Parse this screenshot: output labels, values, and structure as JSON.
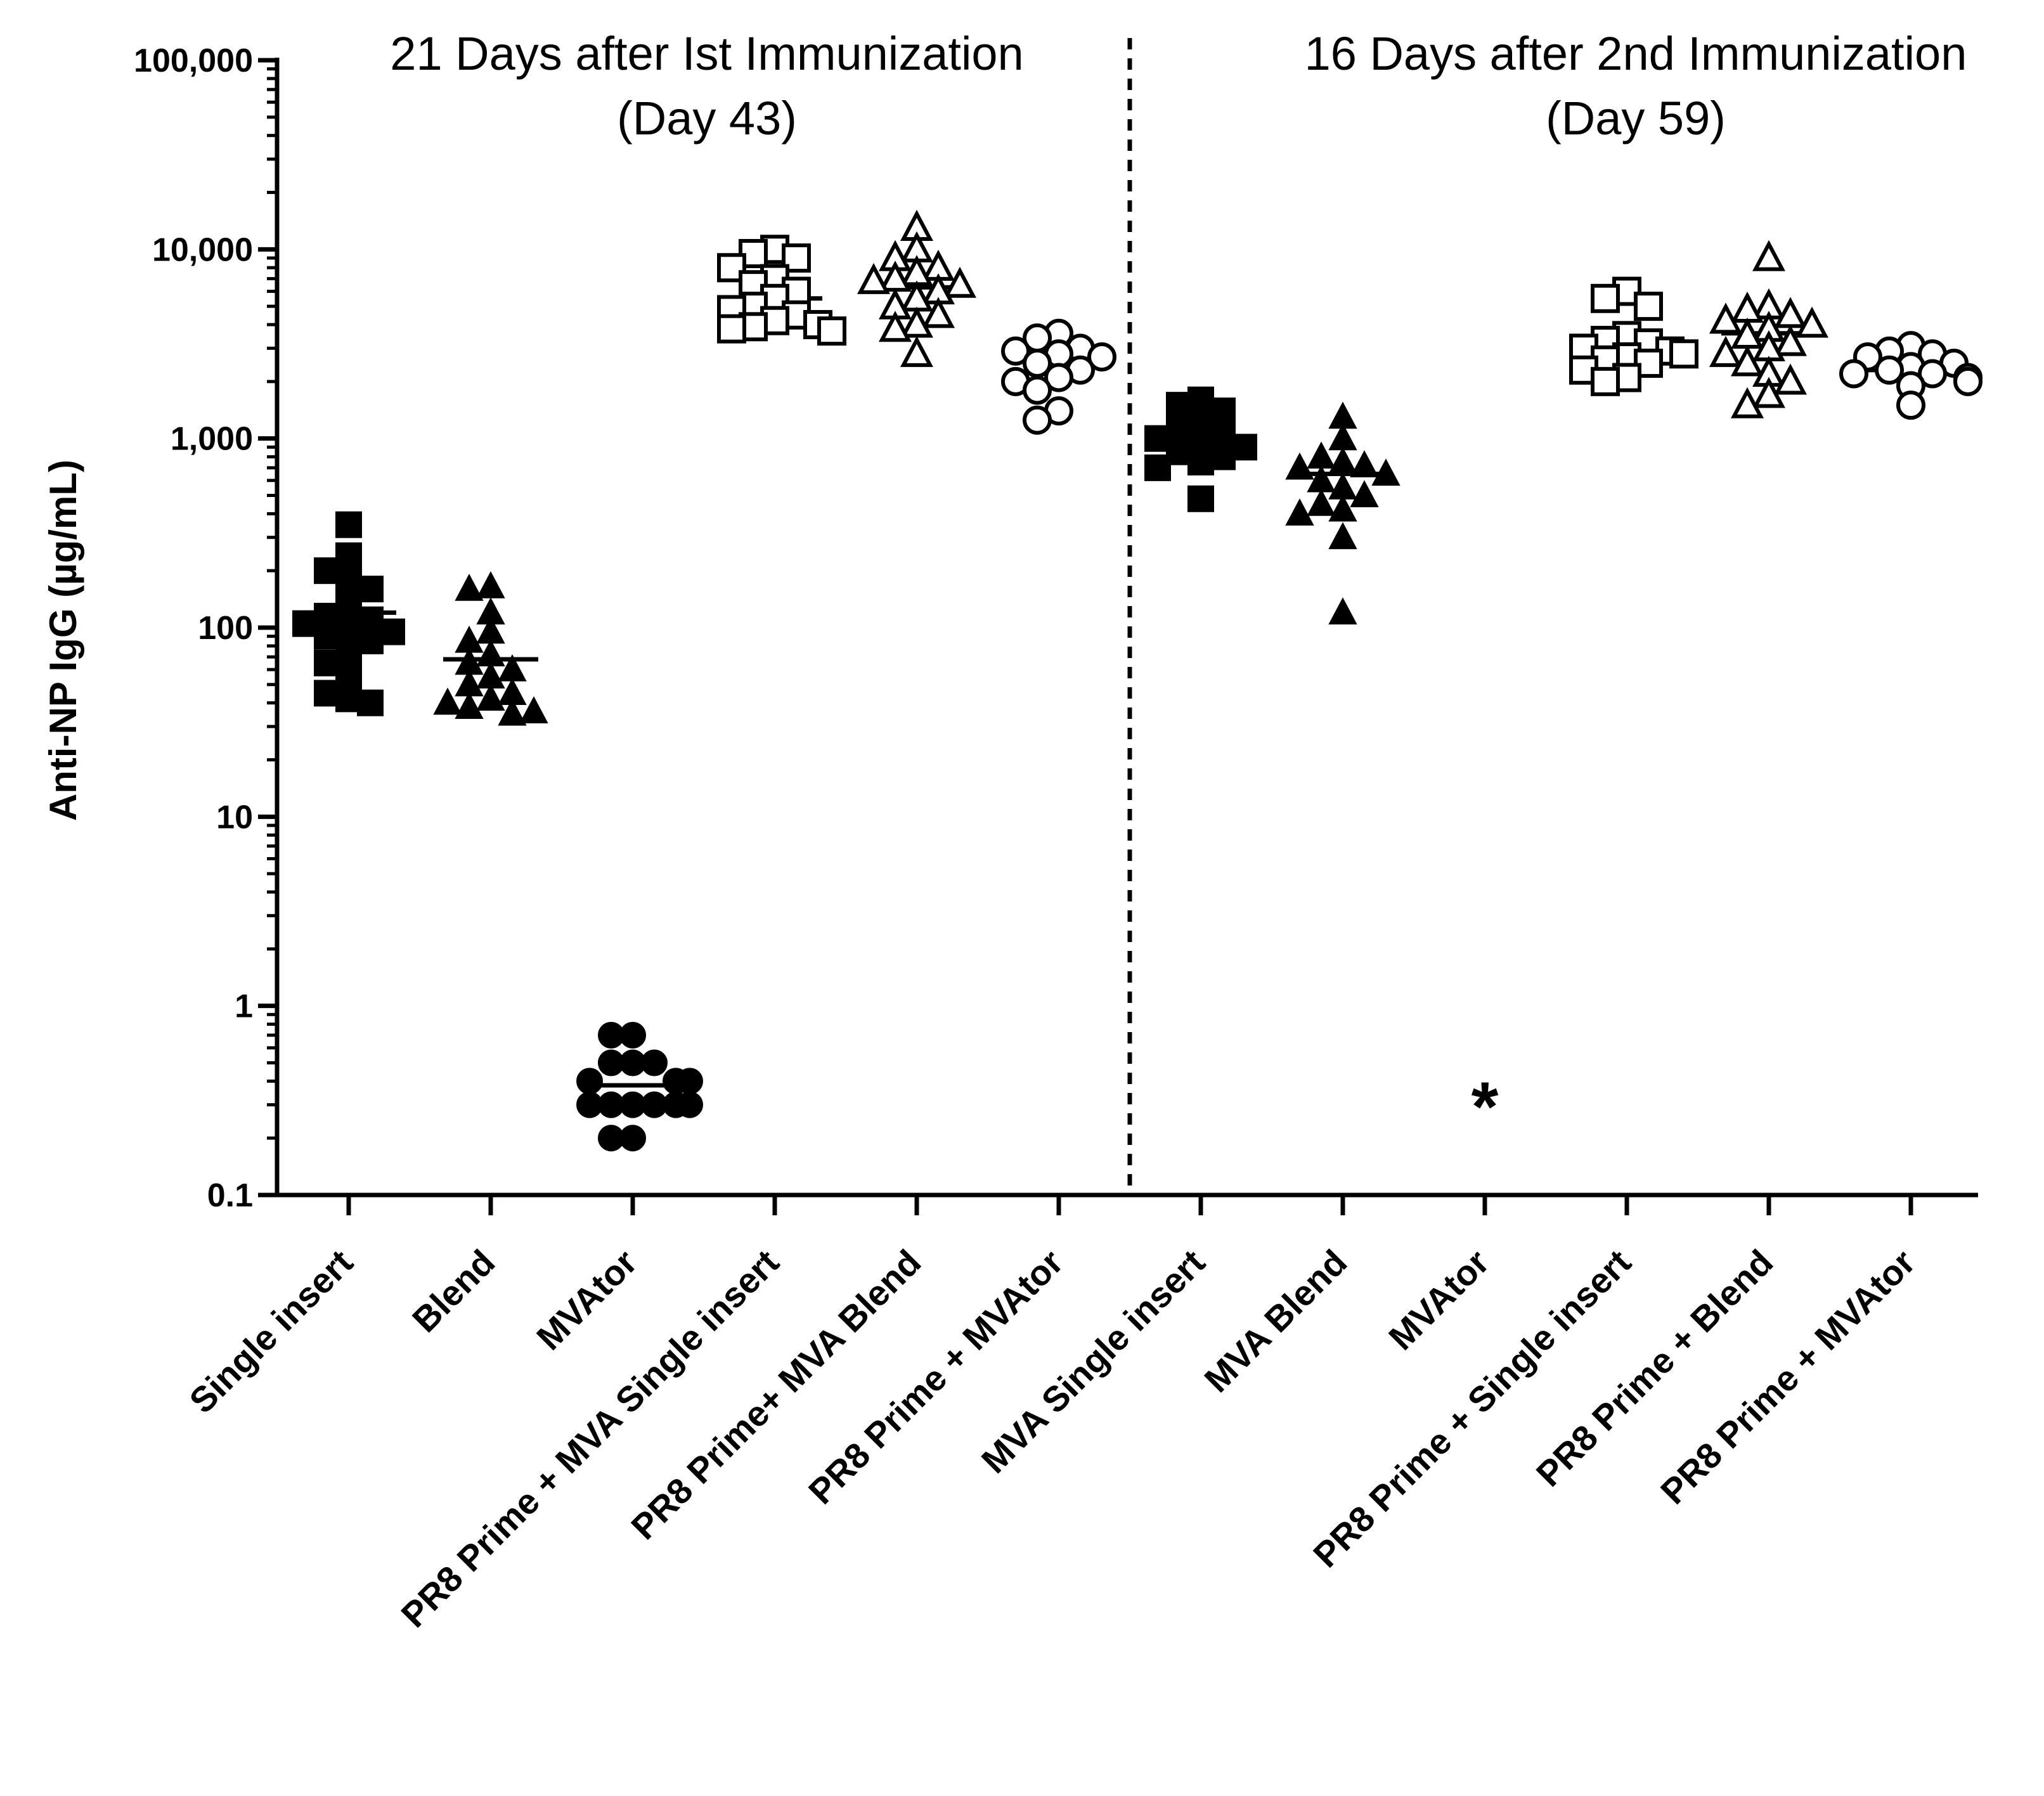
{
  "chart_data": {
    "type": "scatter",
    "yscale": "log",
    "ylabel": "Anti-NP IgG (µg/mL)",
    "ylim": [
      0.1,
      100000
    ],
    "y_ticks": [
      0.1,
      1,
      10,
      100,
      1000,
      10000,
      100000
    ],
    "y_tick_labels": [
      "0.1",
      "1",
      "10",
      "100",
      "1,000",
      "10,000",
      "100,000"
    ],
    "panels": [
      {
        "title_line1": "21 Days after Ist Immunization",
        "title_line2": "(Day 43)"
      },
      {
        "title_line1": "16 Days after 2nd Immunization",
        "title_line2": "(Day 59)"
      }
    ],
    "annotation": "*",
    "annotation_category_index": 8,
    "annotation_y": 0.37,
    "series": [
      {
        "name": "Single insert",
        "panel": 0,
        "marker": "square",
        "filled": true,
        "mean": 120,
        "values": [
          350,
          240,
          200,
          175,
          160,
          130,
          115,
          110,
          105,
          100,
          95,
          90,
          85,
          75,
          65,
          55,
          45,
          42,
          40
        ]
      },
      {
        "name": "Blend",
        "panel": 0,
        "marker": "triangle",
        "filled": true,
        "mean": 68,
        "values": [
          165,
          160,
          120,
          95,
          85,
          72,
          65,
          60,
          55,
          50,
          45,
          42,
          40,
          38,
          36,
          35
        ]
      },
      {
        "name": "MVAtor",
        "panel": 0,
        "marker": "circle",
        "filled": true,
        "mean": 0.38,
        "values": [
          0.7,
          0.7,
          0.5,
          0.5,
          0.5,
          0.4,
          0.4,
          0.4,
          0.3,
          0.3,
          0.3,
          0.3,
          0.3,
          0.3,
          0.2,
          0.2
        ]
      },
      {
        "name": "PR8 Prime + MVA Single insert",
        "panel": 0,
        "marker": "square",
        "filled": false,
        "mean": 5500,
        "values": [
          10000,
          9500,
          9000,
          8000,
          7000,
          6500,
          6000,
          5500,
          5000,
          4800,
          4500,
          4200,
          4000,
          3900,
          3800,
          3700
        ]
      },
      {
        "name": "PR8 Prime+ MVA Blend",
        "panel": 0,
        "marker": "triangle",
        "filled": false,
        "mean": 6300,
        "values": [
          13000,
          10000,
          9000,
          8000,
          7500,
          7000,
          6800,
          6500,
          6000,
          5500,
          5000,
          4500,
          4000,
          3800,
          2800
        ]
      },
      {
        "name": "PR8 Prime + MVAtor",
        "panel": 0,
        "marker": "circle",
        "filled": false,
        "mean": 2600,
        "values": [
          3600,
          3400,
          3000,
          2900,
          2800,
          2700,
          2500,
          2300,
          2100,
          2000,
          1800,
          1400,
          1250
        ]
      },
      {
        "name": "MVA Single insert",
        "panel": 1,
        "marker": "square",
        "filled": true,
        "mean": 1000,
        "values": [
          1600,
          1500,
          1400,
          1200,
          1100,
          1050,
          1000,
          950,
          900,
          850,
          800,
          750,
          700,
          480
        ]
      },
      {
        "name": "MVA Blend",
        "panel": 1,
        "marker": "triangle",
        "filled": true,
        "mean": 650,
        "values": [
          1300,
          1000,
          800,
          750,
          720,
          700,
          650,
          600,
          550,
          500,
          450,
          420,
          400,
          300,
          120
        ]
      },
      {
        "name": "MVAtor",
        "panel": 1,
        "marker": "none",
        "filled": true,
        "mean": null,
        "values": []
      },
      {
        "name": "PR8 Prime + Single insert",
        "panel": 1,
        "marker": "square",
        "filled": false,
        "mean": 2900,
        "values": [
          6000,
          5500,
          5000,
          3500,
          3300,
          3200,
          3000,
          2900,
          2800,
          2700,
          2600,
          2500,
          2300,
          2100,
          2000
        ]
      },
      {
        "name": "PR8 Prime + Blend",
        "panel": 1,
        "marker": "triangle",
        "filled": false,
        "mean": 3600,
        "values": [
          9000,
          5000,
          4800,
          4500,
          4200,
          4000,
          3800,
          3500,
          3200,
          3000,
          2800,
          2500,
          2200,
          2000,
          1700,
          1500
        ]
      },
      {
        "name": "PR8 Prime + MVAtor",
        "panel": 1,
        "marker": "circle",
        "filled": false,
        "mean": 2300,
        "values": [
          3100,
          2900,
          2800,
          2700,
          2500,
          2400,
          2300,
          2200,
          2200,
          2100,
          2000,
          1900,
          1500
        ]
      }
    ]
  }
}
